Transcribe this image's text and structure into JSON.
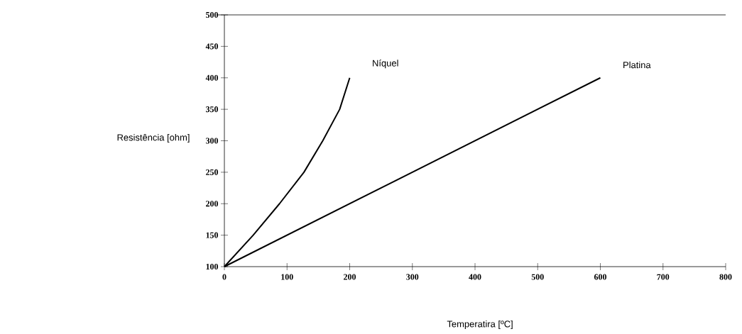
{
  "chart_data": {
    "type": "line",
    "xlabel": "Temperatira  [ºC]",
    "ylabel": "Resistência [ohm]",
    "xlim": [
      0,
      800
    ],
    "ylim": [
      100,
      500
    ],
    "xticks": [
      0,
      100,
      200,
      300,
      400,
      500,
      600,
      700,
      800
    ],
    "yticks": [
      100,
      150,
      200,
      250,
      300,
      350,
      400,
      450,
      500
    ],
    "grid": false,
    "legend": false,
    "marker": "none",
    "line_style": "solid",
    "series": [
      {
        "name": "Níquel",
        "color": "#000000",
        "x": [
          0,
          46,
          88,
          127,
          157,
          184,
          200
        ],
        "values": [
          100,
          150,
          200,
          250,
          300,
          350,
          400
        ]
      },
      {
        "name": "Platina",
        "color": "#000000",
        "x": [
          0,
          600
        ],
        "values": [
          100,
          400
        ]
      }
    ]
  }
}
